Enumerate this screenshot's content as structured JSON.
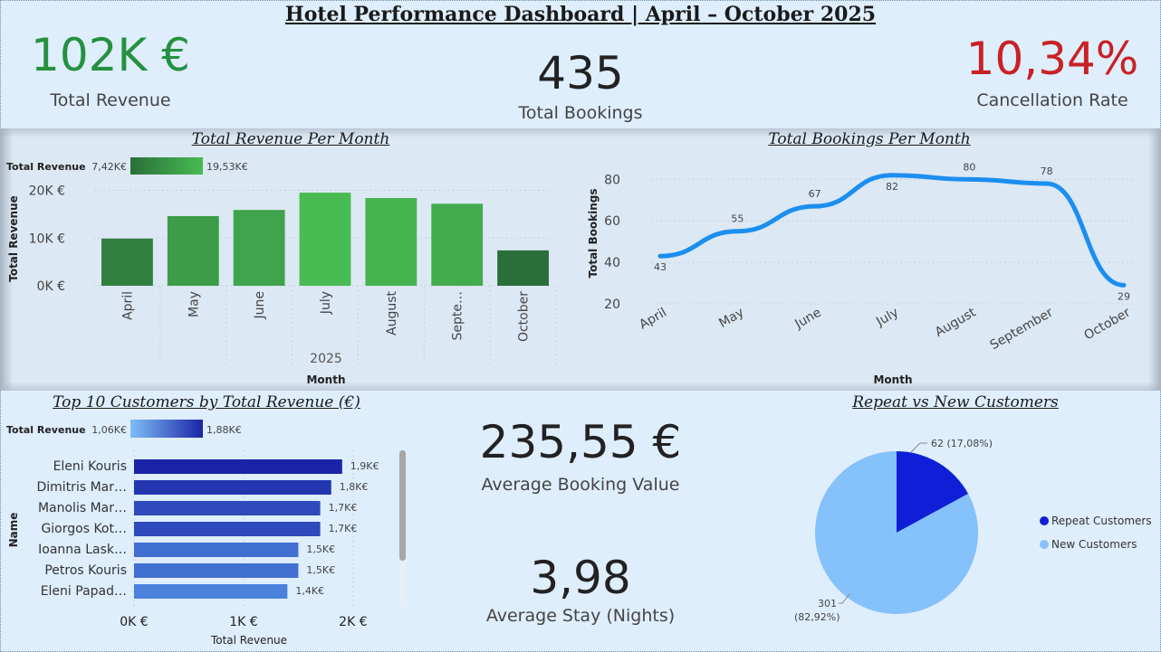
{
  "title": "Hotel Performance Dashboard | April – October 2025",
  "kpis": {
    "total_revenue": {
      "value": "102K €",
      "label": "Total Revenue"
    },
    "total_bookings": {
      "value": "435",
      "label": "Total Bookings"
    },
    "cancellation_rate": {
      "value": "10,34%",
      "label": "Cancellation Rate"
    },
    "avg_booking_value": {
      "value": "235,55 €",
      "label": "Average Booking Value"
    },
    "avg_stay": {
      "value": "3,98",
      "label": "Average Stay (Nights)"
    }
  },
  "colors": {
    "revenue_green": "#25913f",
    "cancel_red": "#c92125",
    "line_blue": "#1b8ef0",
    "pie_dark": "#0f1fd8",
    "pie_light": "#85c1fb"
  },
  "chart_data": [
    {
      "type": "bar",
      "title": "Total Revenue Per Month",
      "categories": [
        "April",
        "May",
        "June",
        "July",
        "August",
        "Septe…",
        "October"
      ],
      "values": [
        9900,
        14600,
        15900,
        19530,
        18400,
        17200,
        7420
      ],
      "xlabel": "Month",
      "x_group_label": "2025",
      "ylabel": "Total Revenue",
      "ylim": [
        0,
        22000
      ],
      "yticks": [
        {
          "v": 0,
          "label": "0K €"
        },
        {
          "v": 10000,
          "label": "10K €"
        },
        {
          "v": 20000,
          "label": "20K €"
        }
      ],
      "legend": {
        "label": "Total Revenue",
        "min": "7,42K€",
        "max": "19,53K€",
        "min_color": "#2a6f3a",
        "max_color": "#48bb52"
      }
    },
    {
      "type": "line",
      "title": "Total Bookings Per Month",
      "categories": [
        "April",
        "May",
        "June",
        "July",
        "August",
        "September",
        "October"
      ],
      "values": [
        43,
        55,
        67,
        82,
        80,
        78,
        29
      ],
      "xlabel": "Month",
      "ylabel": "Total Bookings",
      "ylim": [
        20,
        88
      ],
      "yticks": [
        20,
        40,
        60,
        80
      ]
    },
    {
      "type": "bar",
      "orientation": "horizontal",
      "title": "Top 10 Customers by Total Revenue (€)",
      "categories": [
        "Eleni Kouris",
        "Dimitris Mar…",
        "Manolis Mar…",
        "Giorgos Kot…",
        "Ioanna Lask…",
        "Petros Kouris",
        "Eleni Papad…"
      ],
      "values": [
        1.9,
        1.8,
        1.7,
        1.7,
        1.5,
        1.5,
        1.4
      ],
      "data_labels": [
        "1,9K€",
        "1,8K€",
        "1,7K€",
        "1,7K€",
        "1,5K€",
        "1,5K€",
        "1,4K€"
      ],
      "xlabel": "Total Revenue",
      "ylabel": "Name",
      "xlim": [
        0,
        2.1
      ],
      "xticks": [
        {
          "v": 0,
          "label": "0K €"
        },
        {
          "v": 1,
          "label": "1K €"
        },
        {
          "v": 2,
          "label": "2K €"
        }
      ],
      "legend": {
        "label": "Total Revenue",
        "min": "1,06K€",
        "max": "1,88K€",
        "min_color": "#7fbdf6",
        "max_color": "#1b24a6"
      }
    },
    {
      "type": "pie",
      "title": "Repeat vs New Customers",
      "slices": [
        {
          "name": "Repeat Customers",
          "value": 62,
          "label": "62 (17,08%)",
          "color": "#0f1fd8"
        },
        {
          "name": "New Customers",
          "value": 301,
          "label_line1": "301",
          "label_line2": "(82,92%)",
          "color": "#85c1fb"
        }
      ],
      "legend": "right"
    }
  ]
}
